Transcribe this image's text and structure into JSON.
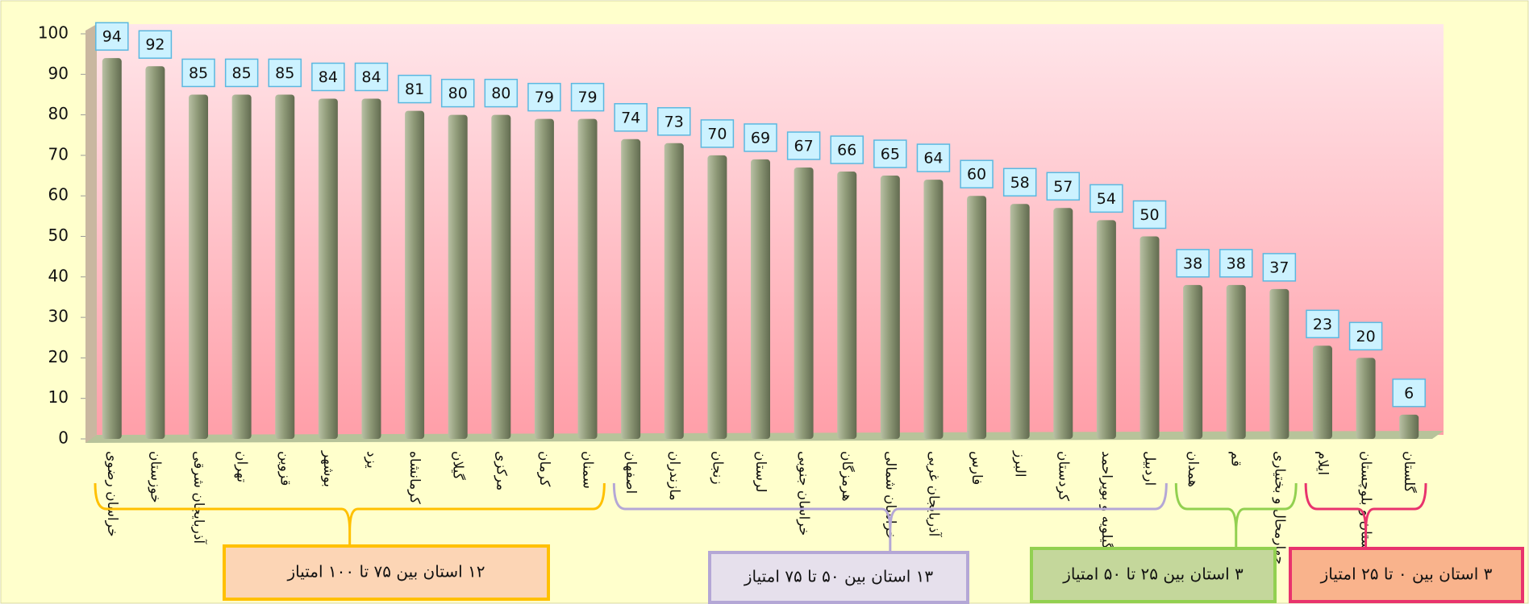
{
  "chart_data": {
    "type": "bar",
    "categories": [
      "خراسان رضوی",
      "خوزستان",
      "آذربایجان شرقی",
      "تهران",
      "قزوین",
      "بوشهر",
      "یزد",
      "کرمانشاه",
      "گیلان",
      "مرکزی",
      "کرمان",
      "سمنان",
      "اصفهان",
      "مازندران",
      "زنجان",
      "لرستان",
      "خراسان جنوبی",
      "هرمزگان",
      "خراسان شمالی",
      "آذربایجان غربی",
      "فارس",
      "البرز",
      "کردستان",
      "کهگیلویه و بویراحمد",
      "اردبیل",
      "همدان",
      "قم",
      "چهارمحال و بختیاری",
      "ایلام",
      "سیستان و بلوچستان",
      "گلستان"
    ],
    "values": [
      94,
      92,
      85,
      85,
      85,
      84,
      84,
      81,
      80,
      80,
      79,
      79,
      74,
      73,
      70,
      69,
      67,
      66,
      65,
      64,
      60,
      58,
      57,
      54,
      50,
      38,
      38,
      37,
      23,
      20,
      6
    ],
    "color": "#8f9a78",
    "ylim": [
      0,
      100
    ],
    "yticks": [
      0,
      10,
      20,
      30,
      40,
      50,
      60,
      70,
      80,
      90,
      100
    ],
    "groups": [
      {
        "label": "۱۲ استان بین ۷۵ تا ۱۰۰ امتیاز",
        "color": "#ffc000",
        "fill": "#fcd5b5"
      },
      {
        "label": "۱۳ استان بین ۵۰ تا ۷۵ امتیاز",
        "color": "#b4a7d6",
        "fill": "#e6e0ec"
      },
      {
        "label": "۳ استان بین ۲۵ تا ۵۰ امتیاز",
        "color": "#92d050",
        "fill": "#c4d79b"
      },
      {
        "label": "۳ استان بین ۰ تا ۲۵ امتیاز",
        "color": "#e8336d",
        "fill": "#f9b38c"
      }
    ]
  }
}
